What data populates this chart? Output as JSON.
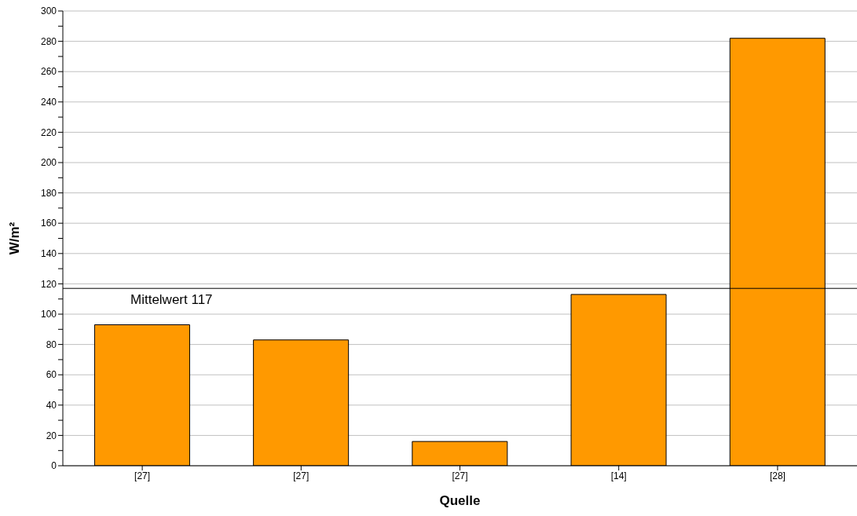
{
  "chart_data": {
    "type": "bar",
    "xlabel": "Quelle",
    "ylabel": "W/m²",
    "categories": [
      "[27]",
      "[27]",
      "[27]",
      "[14]",
      "[28]"
    ],
    "values": [
      93,
      83,
      16,
      113,
      282
    ],
    "color": "#ff9900",
    "ylim": [
      0,
      300
    ],
    "yticks": [
      0,
      {
        "value": 10,
        "label": null
      },
      20,
      {
        "value": 30,
        "label": null
      },
      40,
      {
        "value": 50,
        "label": null
      },
      60,
      {
        "value": 70,
        "label": null
      },
      80,
      {
        "value": 90,
        "label": null
      },
      100,
      {
        "value": 110,
        "label": null
      },
      120,
      {
        "value": 130,
        "label": null
      },
      140,
      {
        "value": 150,
        "label": null
      },
      160,
      {
        "value": 170,
        "label": null
      },
      180,
      {
        "value": 190,
        "label": null
      },
      200,
      {
        "value": 210,
        "label": null
      },
      220,
      {
        "value": 230,
        "label": null
      },
      240,
      {
        "value": 250,
        "label": null
      },
      260,
      {
        "value": 270,
        "label": null
      },
      280,
      {
        "value": 290,
        "label": null
      },
      300
    ],
    "grid": "y",
    "ref_lines": [
      {
        "axis": "y",
        "value": 117,
        "label": "Mittelwert 117",
        "color": "#000000"
      }
    ]
  }
}
